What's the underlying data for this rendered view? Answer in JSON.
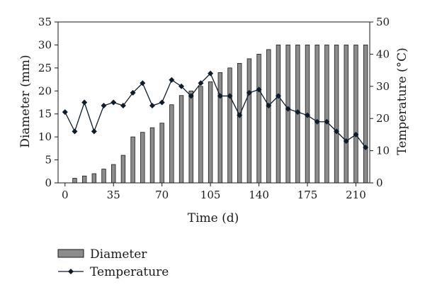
{
  "chart_data": {
    "type": "bar",
    "x": [
      0,
      7,
      14,
      21,
      28,
      35,
      42,
      49,
      56,
      63,
      70,
      77,
      84,
      91,
      98,
      105,
      112,
      119,
      126,
      133,
      140,
      147,
      154,
      161,
      168,
      175,
      182,
      189,
      196,
      203,
      210,
      217
    ],
    "series": [
      {
        "name": "Diameter",
        "type": "bar",
        "axis": "left",
        "values": [
          0,
          1,
          1.5,
          2,
          3,
          4,
          6,
          10,
          11,
          12,
          13,
          17,
          19,
          20,
          21,
          22,
          24,
          25,
          26,
          27,
          28,
          29,
          30,
          30,
          30,
          30,
          30,
          30,
          30,
          30,
          30,
          30
        ]
      },
      {
        "name": "Temperature",
        "type": "line",
        "axis": "right",
        "values": [
          22,
          16,
          25,
          16,
          24,
          25,
          24,
          28,
          31,
          24,
          25,
          32,
          30,
          27,
          31,
          34,
          27,
          27,
          21,
          28,
          29,
          24,
          27,
          23,
          22,
          21,
          19,
          19,
          16,
          13,
          15,
          11
        ]
      }
    ],
    "xlabel": "Time (d)",
    "ylabel": "Diameter (mm)",
    "y2label": "Temperature (°C)",
    "xlim": [
      -5,
      220
    ],
    "ylim": [
      0,
      35
    ],
    "y2lim": [
      0,
      50
    ],
    "xticks": [
      "0",
      "35",
      "70",
      "105",
      "140",
      "175",
      "210"
    ],
    "yticks": [
      "0",
      "5",
      "10",
      "15",
      "20",
      "25",
      "30",
      "35"
    ],
    "y2ticks": [
      "0",
      "10",
      "20",
      "30",
      "40",
      "50"
    ],
    "legend": [
      "Diameter",
      "Temperature"
    ],
    "legend_position": "bottom-left",
    "grid": false,
    "colors": {
      "bar_fill": "#8c8c8c",
      "bar_stroke": "#1a1a1a",
      "line": "#0d1b2a",
      "marker": "#0d1b2a"
    }
  }
}
